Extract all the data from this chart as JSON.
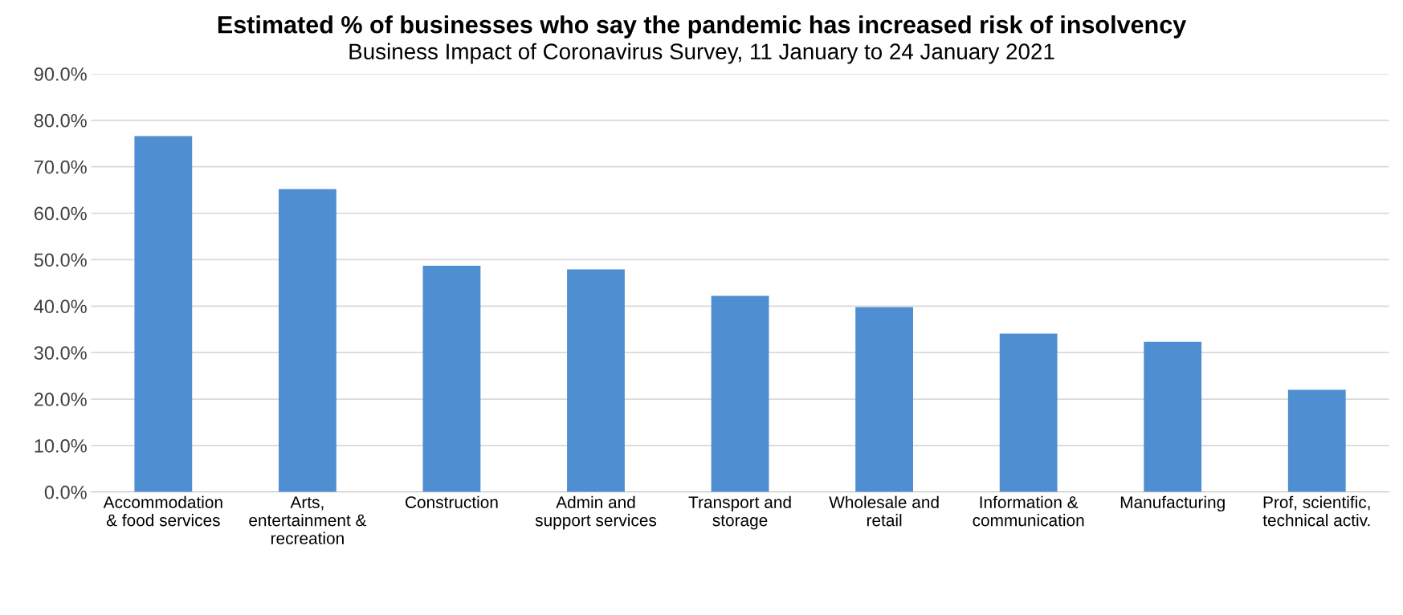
{
  "chart_data": {
    "type": "bar",
    "title": "Estimated % of businesses who say the pandemic has increased risk of insolvency",
    "subtitle": "Business Impact of Coronavirus Survey, 11 January to 24 January 2021",
    "categories": [
      "Accommodation\n& food services",
      "Arts,\nentertainment &\nrecreation",
      "Construction",
      "Admin and\nsupport services",
      "Transport and\nstorage",
      "Wholesale and\nretail",
      "Information &\ncommunication",
      "Manufacturing",
      "Prof, scientific,\ntechnical activ."
    ],
    "values": [
      76.6,
      65.2,
      48.7,
      47.9,
      42.2,
      39.8,
      34.1,
      32.3,
      22.0
    ],
    "color": "#4f8fd1",
    "ylim": [
      0,
      90
    ],
    "yticks": [
      {
        "value": 0,
        "label": "0.0%"
      },
      {
        "value": 10,
        "label": "10.0%"
      },
      {
        "value": 20,
        "label": "20.0%"
      },
      {
        "value": 30,
        "label": "30.0%"
      },
      {
        "value": 40,
        "label": "40.0%"
      },
      {
        "value": 50,
        "label": "50.0%"
      },
      {
        "value": 60,
        "label": "60.0%"
      },
      {
        "value": 70,
        "label": "70.0%"
      },
      {
        "value": 80,
        "label": "80.0%"
      },
      {
        "value": 90,
        "label": "90.0%"
      }
    ],
    "grid": "y"
  }
}
